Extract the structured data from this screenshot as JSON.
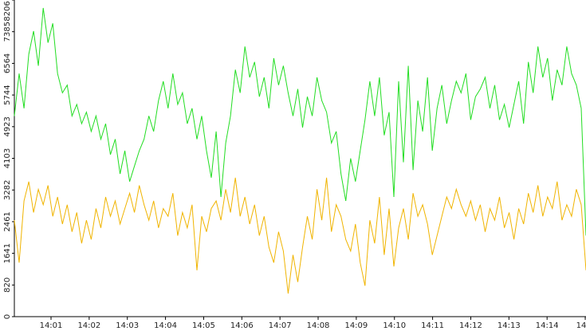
{
  "chart_data": {
    "type": "line",
    "xlim": [
      0.039,
      15.02
    ],
    "xticks": [
      {
        "value": 1,
        "label": "14:01"
      },
      {
        "value": 2,
        "label": "14:02"
      },
      {
        "value": 3,
        "label": "14:03"
      },
      {
        "value": 4,
        "label": "14:04"
      },
      {
        "value": 5,
        "label": "14:05"
      },
      {
        "value": 6,
        "label": "14:06"
      },
      {
        "value": 7,
        "label": "14:07"
      },
      {
        "value": 8,
        "label": "14:08"
      },
      {
        "value": 9,
        "label": "14:09"
      },
      {
        "value": 10,
        "label": "14:10"
      },
      {
        "value": 11,
        "label": "14:11"
      },
      {
        "value": 12,
        "label": "14:12"
      },
      {
        "value": 13,
        "label": "14:13"
      },
      {
        "value": 14,
        "label": "14:14"
      },
      {
        "value": 15,
        "label": "14"
      }
    ],
    "ylim": [
      0,
      8206
    ],
    "yticks": [
      0,
      820,
      1641,
      2461,
      3282,
      4103,
      4923,
      5744,
      6564,
      7385,
      8206
    ],
    "series": [
      {
        "color": "#22dd22",
        "values": [
          5200,
          6300,
          5400,
          6800,
          7400,
          6500,
          8000,
          7100,
          7600,
          6300,
          5800,
          6000,
          5200,
          5500,
          5000,
          5300,
          4800,
          5200,
          4600,
          5000,
          4200,
          4600,
          3700,
          4300,
          3500,
          3900,
          4300,
          4600,
          5200,
          4800,
          5600,
          6100,
          5400,
          6300,
          5500,
          5800,
          5000,
          5400,
          4600,
          5200,
          4300,
          3600,
          4800,
          3100,
          4500,
          5200,
          6400,
          5800,
          7000,
          6200,
          6600,
          5700,
          6200,
          5400,
          6700,
          6000,
          6500,
          5800,
          5200,
          5900,
          4900,
          5700,
          5200,
          6200,
          5600,
          5300,
          4500,
          4800,
          3700,
          3000,
          4100,
          3500,
          4300,
          5100,
          6100,
          5200,
          6200,
          4700,
          5300,
          3100,
          6100,
          4000,
          6500,
          3800,
          5600,
          4800,
          6200,
          4300,
          5400,
          6000,
          5000,
          5600,
          6100,
          5800,
          6300,
          5100,
          5700,
          5900,
          6200,
          5400,
          6000,
          5100,
          5500,
          4900,
          5500,
          6100,
          5000,
          6600,
          5800,
          7000,
          6200,
          6700,
          5600,
          6400,
          6000,
          7000,
          6300,
          6000,
          5400,
          2100
        ]
      },
      {
        "color": "#f0b400",
        "values": [
          2500,
          1400,
          3000,
          3500,
          2700,
          3300,
          2900,
          3400,
          2600,
          3100,
          2400,
          2900,
          2200,
          2700,
          1900,
          2500,
          2000,
          2800,
          2300,
          3100,
          2600,
          3000,
          2400,
          2800,
          3200,
          2700,
          3400,
          2900,
          2500,
          3000,
          2300,
          2800,
          2600,
          3200,
          2100,
          2700,
          2300,
          2900,
          1200,
          2600,
          2200,
          2800,
          3000,
          2500,
          3300,
          2700,
          3600,
          2600,
          3100,
          2400,
          2900,
          2100,
          2600,
          1800,
          1400,
          2200,
          1700,
          600,
          1600,
          900,
          1800,
          2600,
          2000,
          3300,
          2500,
          3600,
          2200,
          2900,
          2600,
          2000,
          1700,
          2400,
          1400,
          800,
          2500,
          1900,
          3100,
          1600,
          2800,
          1300,
          2300,
          2800,
          2000,
          3200,
          2600,
          2900,
          2400,
          1600,
          2100,
          2600,
          3100,
          2800,
          3300,
          2900,
          2600,
          3000,
          2500,
          2900,
          2200,
          2800,
          2500,
          3100,
          2300,
          2700,
          2000,
          2800,
          2400,
          3200,
          2700,
          3400,
          2600,
          3100,
          2800,
          3500,
          2500,
          2900,
          2600,
          3300,
          2900,
          1200
        ]
      }
    ]
  }
}
